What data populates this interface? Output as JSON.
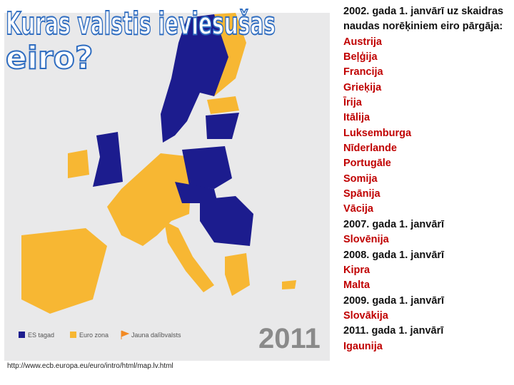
{
  "title": {
    "line1": "Kuras valstis ieviesušas",
    "line2": "eiro?"
  },
  "map": {
    "legend": [
      "ES tagad",
      "Euro zona",
      "Jauna dalībvalsts"
    ],
    "year": "2011"
  },
  "source_url": "http://www.ecb.europa.eu/euro/intro/html/map.lv.html",
  "sections": [
    {
      "heading": "2002. gada 1. janvārī uz skaidras naudas norēķiniem eiro pārgāja:",
      "countries": [
        "Austrija",
        "Beļģija",
        "Francija",
        "Grieķija",
        "Īrija",
        "Itālija",
        "Luksemburga",
        "Nīderlande",
        "Portugāle",
        "Somija",
        "Spānija",
        "Vācija"
      ]
    },
    {
      "heading": "2007. gada 1. janvārī",
      "countries": [
        "Slovēnija"
      ]
    },
    {
      "heading": "2008. gada 1. janvārī",
      "countries": [
        "Kipra",
        "Malta"
      ]
    },
    {
      "heading": "2009. gada 1. janvārī",
      "countries": [
        "Slovākija"
      ]
    },
    {
      "heading": "2011. gada 1. janvārī",
      "countries": [
        "Igaunija"
      ]
    }
  ]
}
